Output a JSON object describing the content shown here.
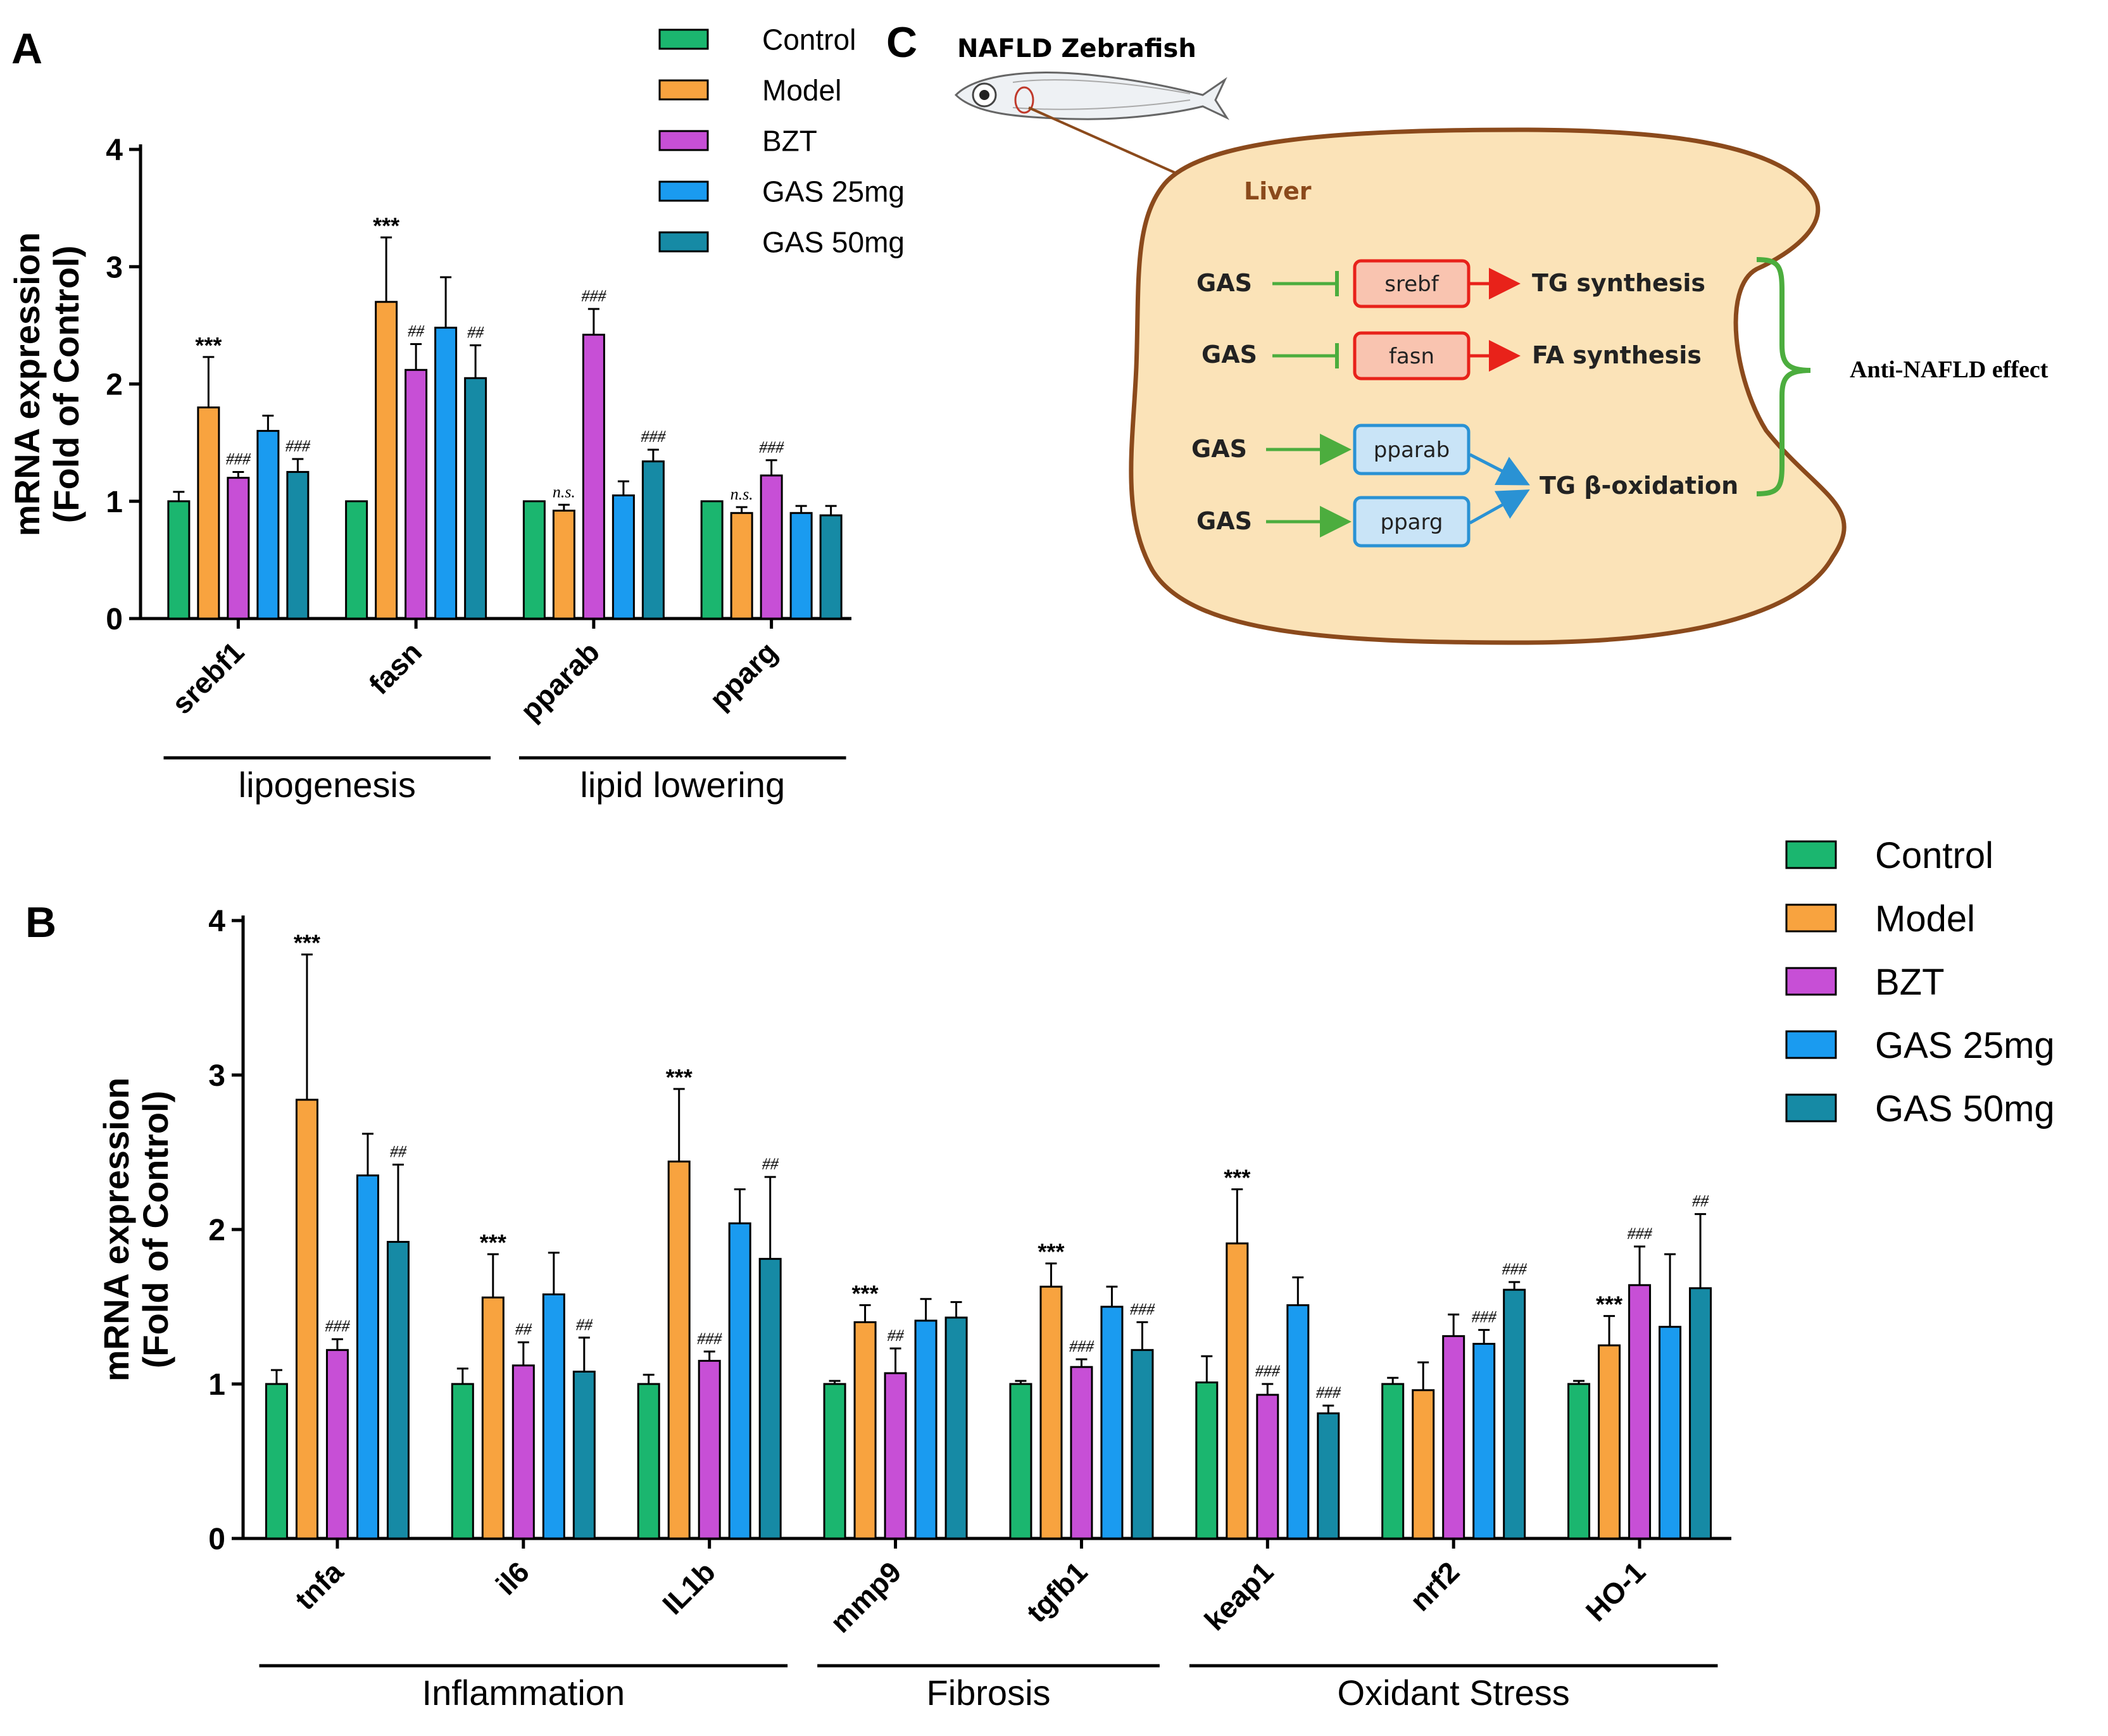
{
  "colors": {
    "Control": "#1bb66f",
    "Model": "#f8a33f",
    "BZT": "#c74fd6",
    "GAS 25mg": "#1a9bf0",
    "GAS 50mg": "#168aa5",
    "liver_fill": "#fbe3b8",
    "liver_stroke": "#8b4a1c",
    "red": "#e8221a",
    "blue": "#2a92d4",
    "green": "#4cad3e"
  },
  "legend_a": [
    "Control",
    "Model",
    "BZT",
    "GAS 25mg",
    "GAS 50mg"
  ],
  "legend_b": [
    "Control",
    "Model",
    "BZT",
    "GAS 25mg",
    "GAS 50mg"
  ],
  "chart_data": [
    {
      "panel": "A",
      "type": "bar",
      "ylabel": "mRNA expression\n(Fold of Control)",
      "ylim": [
        0,
        4
      ],
      "yticks": [
        "0",
        "1",
        "2",
        "3",
        "4"
      ],
      "categories": [
        "srebf1",
        "fasn",
        "pparab",
        "pparg"
      ],
      "groups": [
        {
          "label": "lipogenesis",
          "from": 0,
          "to": 1
        },
        {
          "label": "lipid lowering",
          "from": 2,
          "to": 3
        }
      ],
      "series": [
        {
          "name": "Control",
          "values": [
            1.0,
            1.0,
            1.0,
            1.0
          ],
          "errors": [
            0.08,
            0.0,
            0.0,
            0.0
          ]
        },
        {
          "name": "Model",
          "values": [
            1.8,
            2.7,
            0.92,
            0.9
          ],
          "errors": [
            0.43,
            0.55,
            0.05,
            0.05
          ]
        },
        {
          "name": "BZT",
          "values": [
            1.2,
            2.12,
            2.42,
            1.22
          ],
          "errors": [
            0.05,
            0.22,
            0.22,
            0.13
          ]
        },
        {
          "name": "GAS 25mg",
          "values": [
            1.6,
            2.48,
            1.05,
            0.9
          ],
          "errors": [
            0.13,
            0.43,
            0.12,
            0.06
          ]
        },
        {
          "name": "GAS 50mg",
          "values": [
            1.25,
            2.05,
            1.34,
            0.88
          ],
          "errors": [
            0.11,
            0.28,
            0.1,
            0.08
          ]
        }
      ],
      "annotations": [
        {
          "cat": 0,
          "series": 1,
          "text": "***"
        },
        {
          "cat": 0,
          "series": 2,
          "text": "###"
        },
        {
          "cat": 0,
          "series": 4,
          "text": "###"
        },
        {
          "cat": 1,
          "series": 1,
          "text": "***"
        },
        {
          "cat": 1,
          "series": 2,
          "text": "##"
        },
        {
          "cat": 1,
          "series": 4,
          "text": "##"
        },
        {
          "cat": 2,
          "series": 1,
          "text": "n.s."
        },
        {
          "cat": 2,
          "series": 2,
          "text": "###"
        },
        {
          "cat": 2,
          "series": 4,
          "text": "###"
        },
        {
          "cat": 3,
          "series": 1,
          "text": "n.s."
        },
        {
          "cat": 3,
          "series": 2,
          "text": "###"
        }
      ]
    },
    {
      "panel": "B",
      "type": "bar",
      "ylabel": "mRNA expression\n(Fold of Control)",
      "ylim": [
        0,
        4
      ],
      "yticks": [
        "0",
        "1",
        "2",
        "3",
        "4"
      ],
      "categories": [
        "tnfa",
        "il6",
        "IL1b",
        "mmp9",
        "tgfb1",
        "keap1",
        "nrf2",
        "HO-1"
      ],
      "groups": [
        {
          "label": "Inflammation",
          "from": 0,
          "to": 2
        },
        {
          "label": "Fibrosis",
          "from": 3,
          "to": 4
        },
        {
          "label": "Oxidant Stress",
          "from": 5,
          "to": 7
        }
      ],
      "series": [
        {
          "name": "Control",
          "values": [
            1.0,
            1.0,
            1.0,
            1.0,
            1.0,
            1.01,
            1.0,
            1.0
          ],
          "errors": [
            0.09,
            0.1,
            0.06,
            0.02,
            0.02,
            0.17,
            0.04,
            0.02
          ]
        },
        {
          "name": "Model",
          "values": [
            2.84,
            1.56,
            2.44,
            1.4,
            1.63,
            1.91,
            0.96,
            1.25
          ],
          "errors": [
            0.94,
            0.28,
            0.47,
            0.11,
            0.15,
            0.35,
            0.18,
            0.19
          ]
        },
        {
          "name": "BZT",
          "values": [
            1.22,
            1.12,
            1.15,
            1.07,
            1.11,
            0.93,
            1.31,
            1.64
          ],
          "errors": [
            0.07,
            0.15,
            0.06,
            0.16,
            0.05,
            0.07,
            0.14,
            0.25
          ]
        },
        {
          "name": "GAS 25mg",
          "values": [
            2.35,
            1.58,
            2.04,
            1.41,
            1.5,
            1.51,
            1.26,
            1.37
          ],
          "errors": [
            0.27,
            0.27,
            0.22,
            0.14,
            0.13,
            0.18,
            0.09,
            0.47
          ]
        },
        {
          "name": "GAS 50mg",
          "values": [
            1.92,
            1.08,
            1.81,
            1.43,
            1.22,
            0.81,
            1.61,
            1.62
          ],
          "errors": [
            0.5,
            0.22,
            0.53,
            0.1,
            0.18,
            0.05,
            0.05,
            0.48
          ]
        }
      ],
      "annotations": [
        {
          "cat": 0,
          "series": 1,
          "text": "***"
        },
        {
          "cat": 0,
          "series": 2,
          "text": "###"
        },
        {
          "cat": 0,
          "series": 4,
          "text": "##"
        },
        {
          "cat": 1,
          "series": 1,
          "text": "***"
        },
        {
          "cat": 1,
          "series": 2,
          "text": "##"
        },
        {
          "cat": 1,
          "series": 4,
          "text": "##"
        },
        {
          "cat": 2,
          "series": 1,
          "text": "***"
        },
        {
          "cat": 2,
          "series": 2,
          "text": "###"
        },
        {
          "cat": 2,
          "series": 4,
          "text": "##"
        },
        {
          "cat": 3,
          "series": 1,
          "text": "***"
        },
        {
          "cat": 3,
          "series": 2,
          "text": "##"
        },
        {
          "cat": 4,
          "series": 1,
          "text": "***"
        },
        {
          "cat": 4,
          "series": 2,
          "text": "###"
        },
        {
          "cat": 4,
          "series": 4,
          "text": "###"
        },
        {
          "cat": 5,
          "series": 1,
          "text": "***"
        },
        {
          "cat": 5,
          "series": 2,
          "text": "###"
        },
        {
          "cat": 5,
          "series": 4,
          "text": "###"
        },
        {
          "cat": 6,
          "series": 3,
          "text": "###"
        },
        {
          "cat": 6,
          "series": 4,
          "text": "###"
        },
        {
          "cat": 7,
          "series": 1,
          "text": "***"
        },
        {
          "cat": 7,
          "series": 2,
          "text": "###"
        },
        {
          "cat": 7,
          "series": 4,
          "text": "##"
        }
      ]
    }
  ],
  "panel_labels": {
    "a": "A",
    "b": "B",
    "c": "C"
  },
  "diagram": {
    "title": "NAFLD Zebrafish",
    "liver_label": "Liver",
    "rows": [
      {
        "source": "GAS",
        "target": "srebf",
        "effect": "TG synthesis"
      },
      {
        "source": "GAS",
        "target": "fasn",
        "effect": "FA synthesis"
      },
      {
        "source": "GAS",
        "target": "pparab"
      },
      {
        "source": "GAS",
        "target": "pparg"
      }
    ],
    "joint_effect": "TG β-oxidation",
    "outcome": "Anti-NAFLD effect"
  }
}
